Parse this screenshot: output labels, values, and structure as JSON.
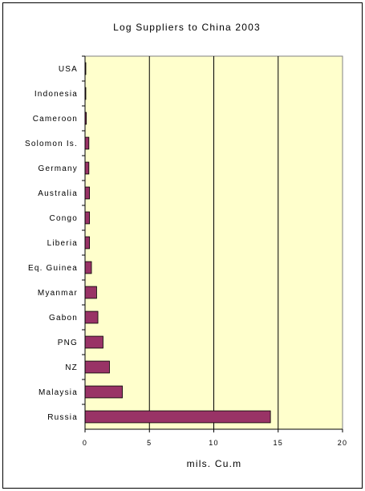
{
  "chart_data": {
    "type": "bar",
    "orientation": "horizontal",
    "title": "Log Suppliers to China 2003",
    "xlabel": "mils. Cu.m",
    "ylabel": "",
    "xlim": [
      0,
      20
    ],
    "xticks": [
      0,
      5,
      10,
      15,
      20
    ],
    "categories": [
      "USA",
      "Indonesia",
      "Cameroon",
      "Solomon Is.",
      "Germany",
      "Australia",
      "Congo",
      "Liberia",
      "Eq. Guinea",
      "Myanmar",
      "Gabon",
      "PNG",
      "NZ",
      "Malaysia",
      "Russia"
    ],
    "values": [
      0.05,
      0.05,
      0.1,
      0.3,
      0.3,
      0.35,
      0.35,
      0.35,
      0.5,
      0.9,
      1.0,
      1.4,
      1.9,
      2.9,
      14.4
    ],
    "grid": true,
    "legend": "none",
    "colors": {
      "bar": "#993366",
      "plot_background": "#ffffcc",
      "gridline": "#000000"
    }
  }
}
